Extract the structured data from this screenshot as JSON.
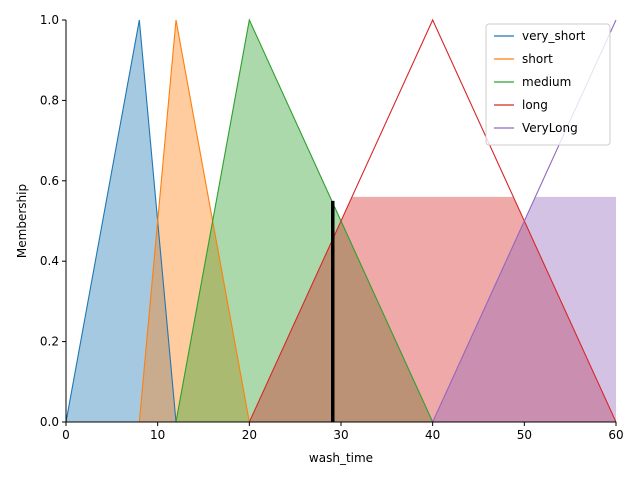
{
  "chart_data": {
    "type": "area",
    "title": "",
    "xlabel": "wash_time",
    "ylabel": "Membership",
    "xlim": [
      0,
      60
    ],
    "ylim": [
      0,
      1.0
    ],
    "x_ticks": [
      0,
      10,
      20,
      30,
      40,
      50,
      60
    ],
    "y_ticks": [
      0.0,
      0.2,
      0.4,
      0.6,
      0.8,
      1.0
    ],
    "x_tick_labels": [
      "0",
      "10",
      "20",
      "30",
      "40",
      "50",
      "60"
    ],
    "y_tick_labels": [
      "0.0",
      "0.2",
      "0.4",
      "0.6",
      "0.8",
      "1.0"
    ],
    "grid": false,
    "legend_position": "top-right",
    "series": [
      {
        "name": "very_short",
        "color": "#1f77b4",
        "x": [
          0,
          8,
          12
        ],
        "y": [
          0,
          1,
          0
        ]
      },
      {
        "name": "short",
        "color": "#ff7f0e",
        "x": [
          8,
          12,
          20
        ],
        "y": [
          0,
          1,
          0
        ]
      },
      {
        "name": "medium",
        "color": "#2ca02c",
        "x": [
          12,
          20,
          40
        ],
        "y": [
          0,
          1,
          0
        ]
      },
      {
        "name": "long",
        "color": "#d62728",
        "x": [
          20,
          40,
          60
        ],
        "y": [
          0,
          1,
          0
        ]
      },
      {
        "name": "VeryLong",
        "color": "#9467bd",
        "x": [
          40,
          60
        ],
        "y": [
          0,
          1
        ]
      }
    ],
    "activation_level": 0.56,
    "output_value": 29.1,
    "output_line_color": "#000000"
  }
}
